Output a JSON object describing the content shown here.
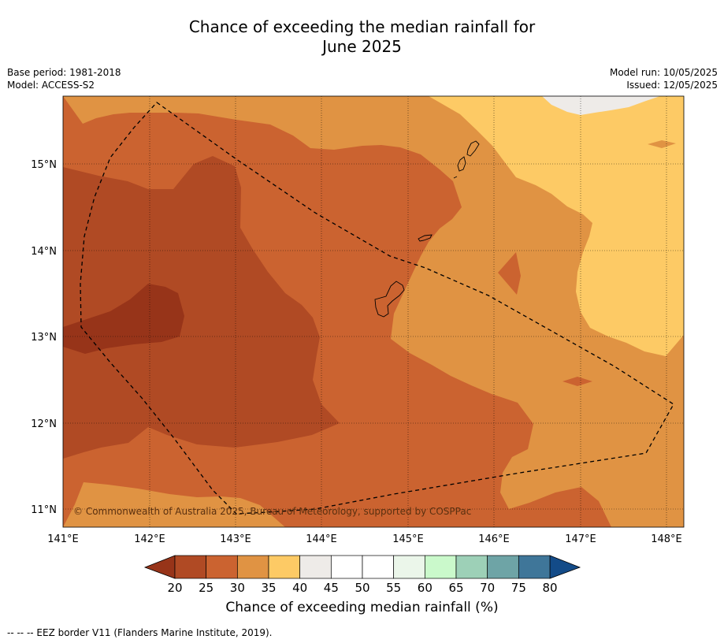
{
  "title": {
    "line1": "Chance of exceeding the median rainfall for",
    "line2": "June 2025"
  },
  "meta_left": {
    "base_period": "Base period: 1981-2018",
    "model": "Model: ACCESS-S2"
  },
  "meta_right": {
    "model_run": "Model run: 10/05/2025",
    "issued": "Issued: 12/05/2025"
  },
  "map": {
    "lon_labels": [
      "141°E",
      "142°E",
      "143°E",
      "144°E",
      "145°E",
      "146°E",
      "147°E",
      "148°E"
    ],
    "lat_labels": [
      "15°N",
      "14°N",
      "13°N",
      "12°N",
      "11°N"
    ],
    "copyright": "© Commonwealth of Australia 2025, Bureau of Meteorology, supported by COSPPac",
    "band_colors": {
      "20-25": "#b04a24",
      "15-20": "#973419",
      "25-30": "#cb6330",
      "30-35": "#e09343",
      "35-40": "#fdca65",
      "40-45": "#eeebe8"
    }
  },
  "colorbar": {
    "ticks": [
      "20",
      "25",
      "30",
      "35",
      "40",
      "45",
      "50",
      "55",
      "60",
      "65",
      "70",
      "75",
      "80"
    ],
    "colors": [
      "#b04a24",
      "#cb6330",
      "#e09343",
      "#fdca65",
      "#eeebe8",
      "#ffffff",
      "#ffffff",
      "#ebf6ea",
      "#caf9cb",
      "#9dd0b7",
      "#6ea4a6",
      "#3f7699"
    ],
    "under_color": "#973419",
    "over_color": "#134b88",
    "label": "Chance of exceeding median rainfall (%)"
  },
  "footnote": "--  --  -- EEZ border V11 (Flanders Marine Institute, 2019)."
}
